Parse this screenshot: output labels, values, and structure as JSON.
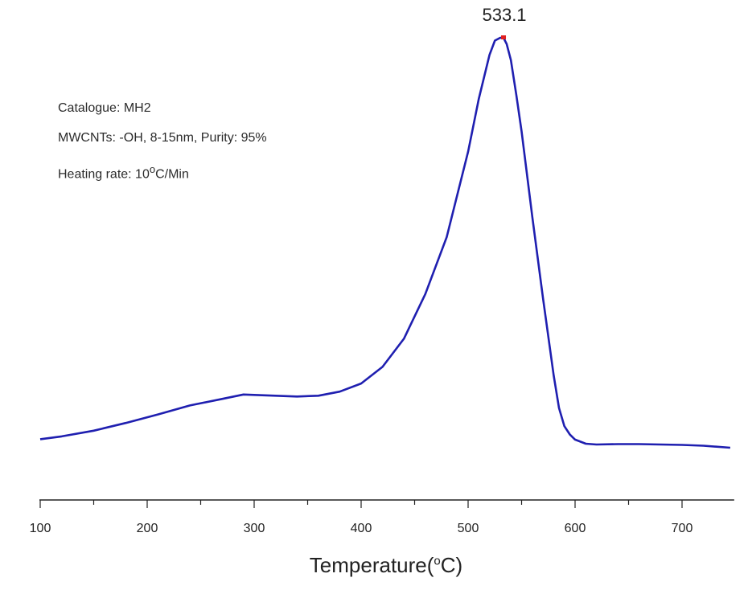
{
  "chart_data": {
    "type": "line",
    "title": "",
    "xlabel_prefix": "Temperature(",
    "xlabel_degree": "o",
    "xlabel_suffix": "C)",
    "ylabel": "",
    "xlim": [
      100,
      745
    ],
    "ylim": [
      0,
      1
    ],
    "x_ticks": [
      100,
      200,
      300,
      400,
      500,
      600,
      700
    ],
    "series": [
      {
        "name": "MWCNTs -OH",
        "color": "#1f1fb0",
        "x": [
          100,
          120,
          150,
          180,
          210,
          240,
          270,
          290,
          300,
          320,
          340,
          360,
          380,
          400,
          420,
          440,
          460,
          480,
          500,
          510,
          520,
          525,
          530,
          533.1,
          536,
          540,
          545,
          550,
          560,
          570,
          580,
          585,
          590,
          595,
          600,
          610,
          620,
          640,
          660,
          680,
          700,
          720,
          745
        ],
        "y": [
          0.013,
          0.02,
          0.034,
          0.053,
          0.074,
          0.096,
          0.112,
          0.123,
          0.122,
          0.12,
          0.118,
          0.12,
          0.13,
          0.15,
          0.191,
          0.26,
          0.37,
          0.51,
          0.72,
          0.85,
          0.958,
          0.993,
          1.0,
          1.0,
          0.985,
          0.945,
          0.86,
          0.77,
          0.56,
          0.36,
          0.17,
          0.09,
          0.045,
          0.025,
          0.012,
          0.002,
          0.0,
          0.001,
          0.001,
          0.0,
          -0.001,
          -0.003,
          -0.008
        ]
      }
    ],
    "annotations": [
      {
        "text": "533.1",
        "x": 533.1,
        "y": 1.0,
        "marker_color": "#e02020"
      }
    ]
  },
  "info": {
    "catalogue": "Catalogue: MH2",
    "material": "MWCNTs: -OH, 8-15nm, Purity: 95%",
    "heating_prefix": "Heating rate: 10",
    "heating_degree": "o",
    "heating_suffix": "C/Min"
  }
}
